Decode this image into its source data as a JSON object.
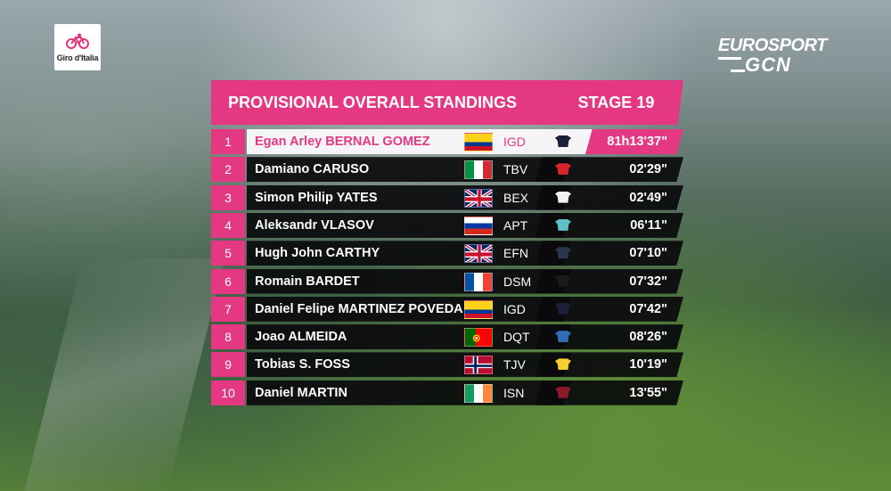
{
  "branding": {
    "race_logo_text": "Giro d'Italia",
    "broadcaster_line1": "EUROSPORT",
    "broadcaster_line2": "GCN"
  },
  "board": {
    "title": "PROVISIONAL OVERALL STANDINGS",
    "stage": "STAGE 19",
    "accent_color": "#e53883"
  },
  "standings": [
    {
      "pos": "1",
      "name": "Egan Arley BERNAL GOMEZ",
      "flag": "COL",
      "team": "IGD",
      "jersey_color": "#1b1f3a",
      "time": "81h13'37\""
    },
    {
      "pos": "2",
      "name": "Damiano CARUSO",
      "flag": "ITA",
      "team": "TBV",
      "jersey_color": "#d9252a",
      "time": "02'29\""
    },
    {
      "pos": "3",
      "name": "Simon Philip YATES",
      "flag": "GBR",
      "team": "BEX",
      "jersey_color": "#f2f2f2",
      "time": "02'49\""
    },
    {
      "pos": "4",
      "name": "Aleksandr VLASOV",
      "flag": "RUS",
      "team": "APT",
      "jersey_color": "#5fc0c6",
      "time": "06'11\""
    },
    {
      "pos": "5",
      "name": "Hugh John CARTHY",
      "flag": "GBR",
      "team": "EFN",
      "jersey_color": "#2b3550",
      "time": "07'10\""
    },
    {
      "pos": "6",
      "name": "Romain BARDET",
      "flag": "FRA",
      "team": "DSM",
      "jersey_color": "#1a1a1a",
      "time": "07'32\""
    },
    {
      "pos": "7",
      "name": "Daniel Felipe MARTINEZ POVEDA",
      "flag": "COL",
      "team": "IGD",
      "jersey_color": "#1b1f3a",
      "time": "07'42\""
    },
    {
      "pos": "8",
      "name": "Joao ALMEIDA",
      "flag": "POR",
      "team": "DQT",
      "jersey_color": "#2f6db5",
      "time": "08'26\""
    },
    {
      "pos": "9",
      "name": "Tobias S. FOSS",
      "flag": "NOR",
      "team": "TJV",
      "jersey_color": "#f5d02c",
      "time": "10'19\""
    },
    {
      "pos": "10",
      "name": "Daniel MARTIN",
      "flag": "IRL",
      "team": "ISN",
      "jersey_color": "#8a1a2a",
      "time": "13'55\""
    }
  ]
}
